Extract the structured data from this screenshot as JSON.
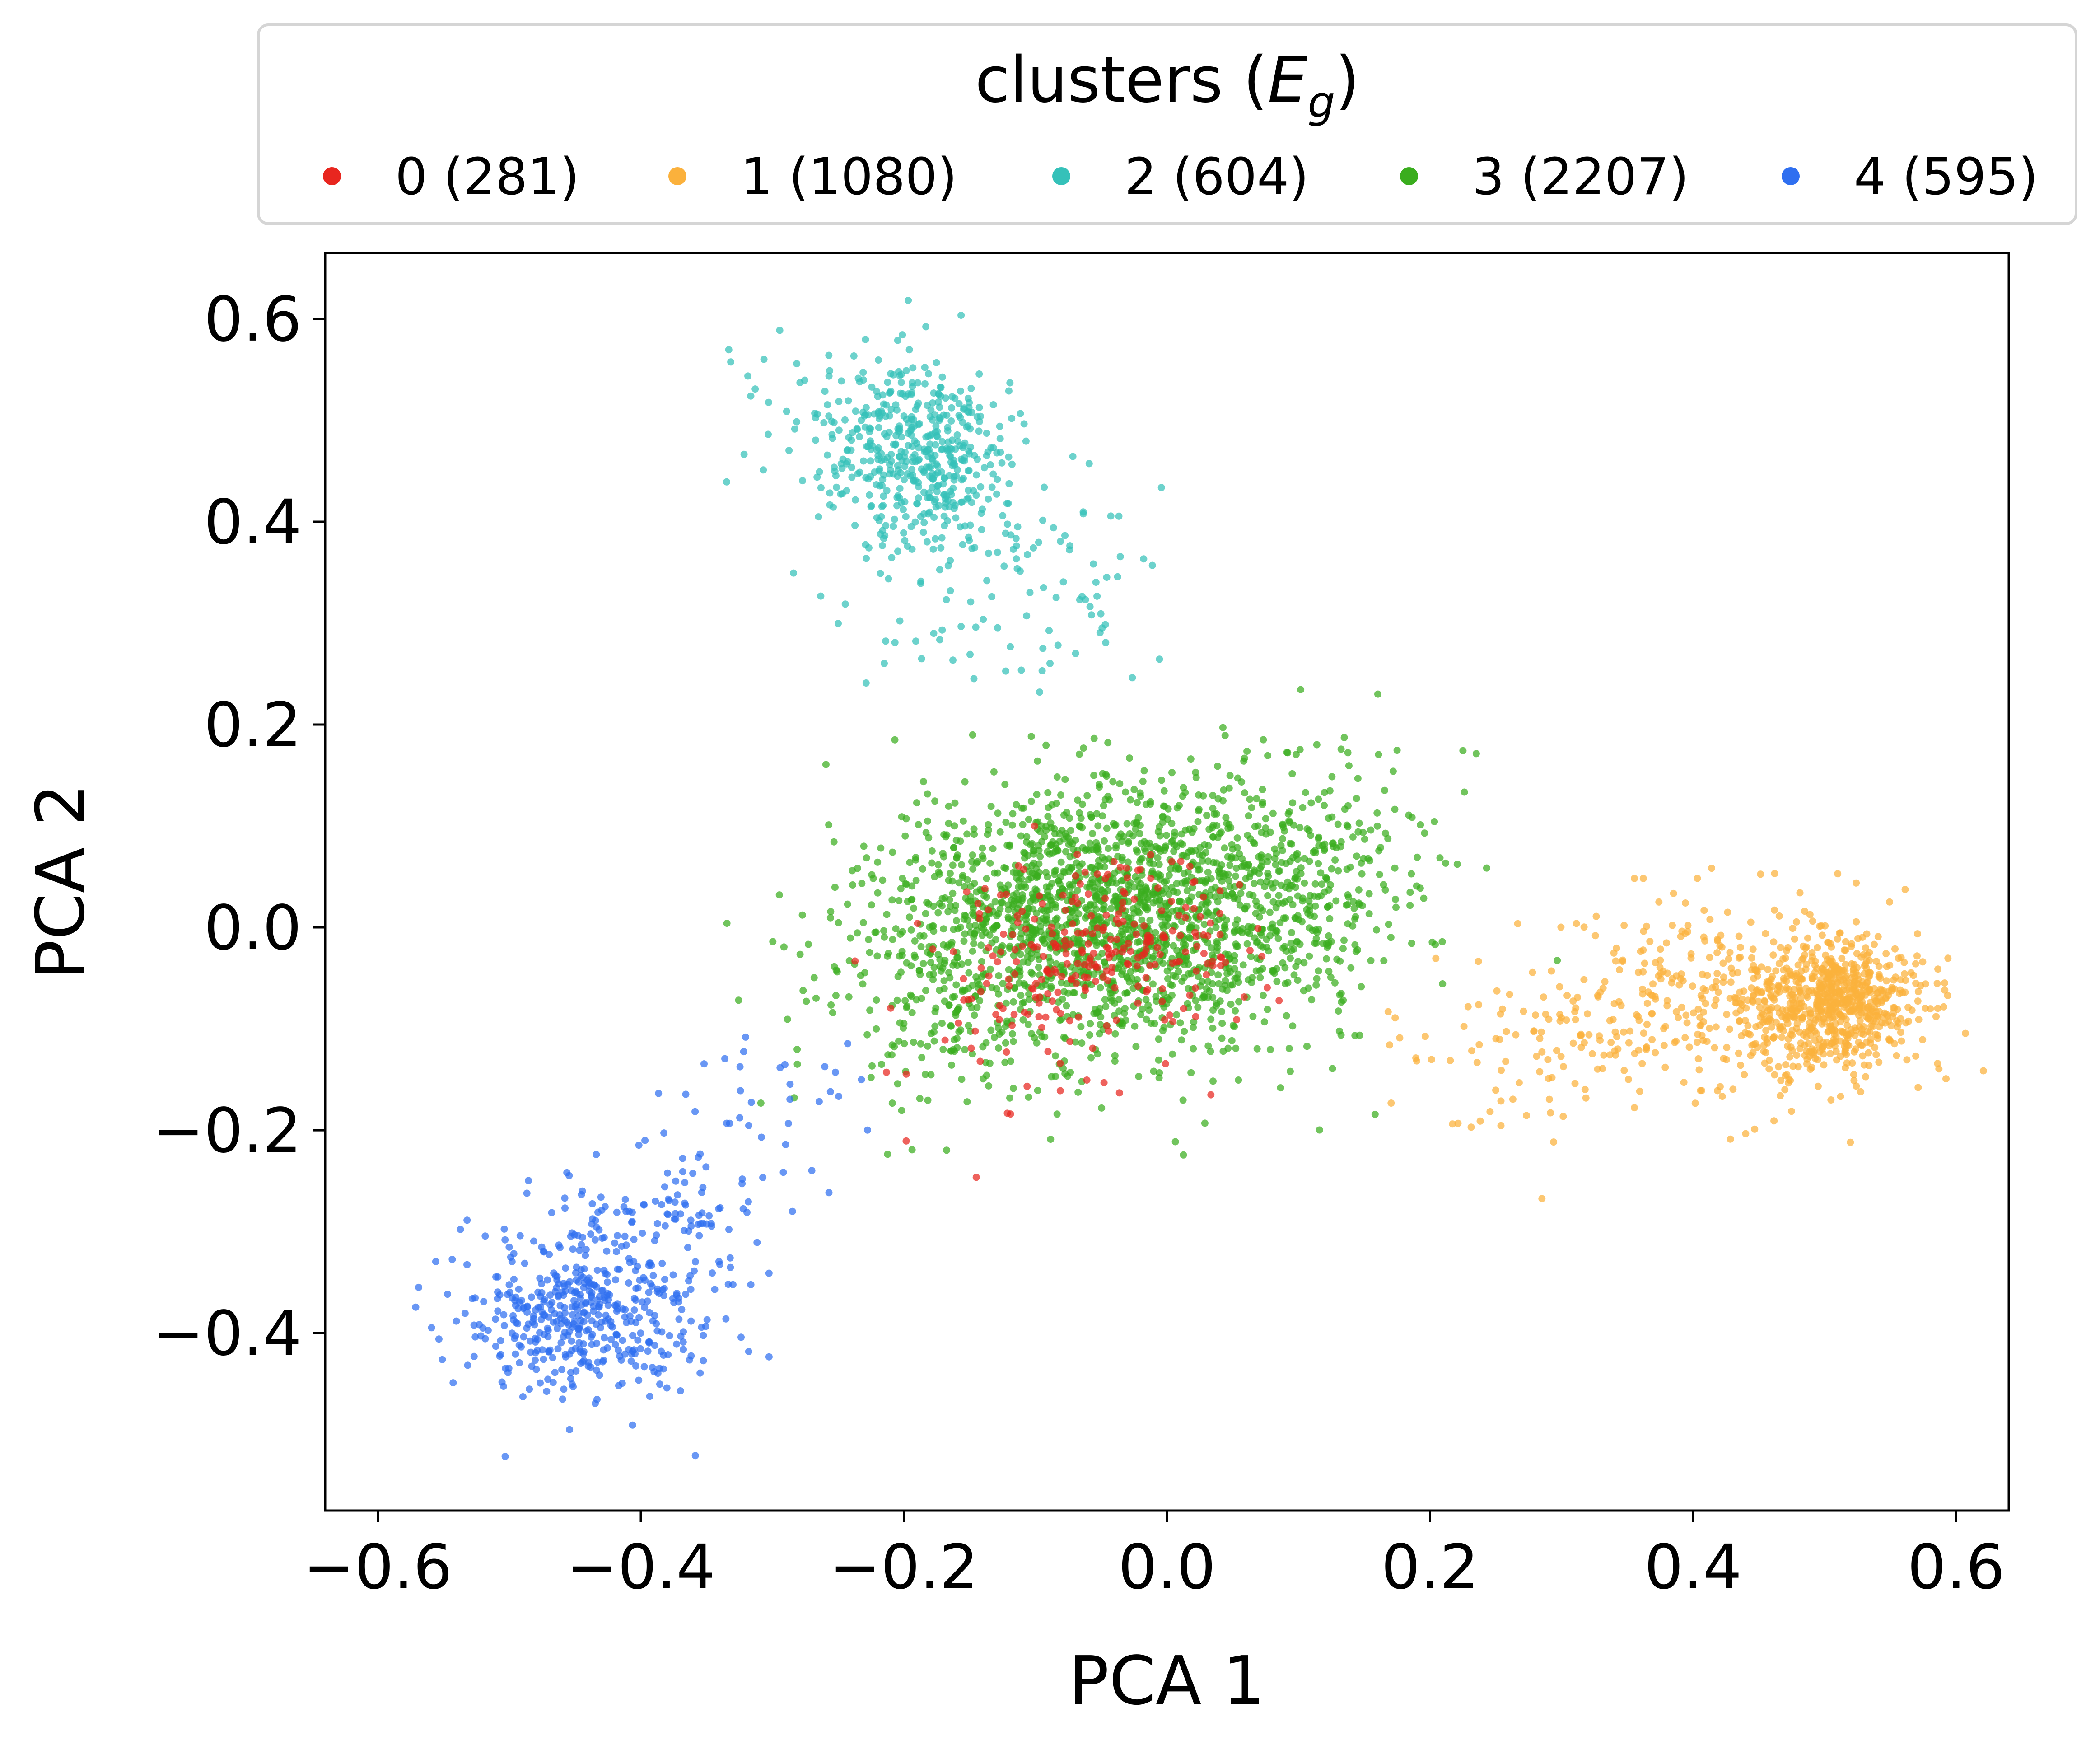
{
  "chart_data": {
    "type": "scatter",
    "xlabel": "PCA 1",
    "ylabel": "PCA 2",
    "xlim": [
      -0.64,
      0.64
    ],
    "ylim": [
      -0.575,
      0.665
    ],
    "xticks": [
      -0.6,
      -0.4,
      -0.2,
      0.0,
      0.2,
      0.4,
      0.6
    ],
    "xtick_labels": [
      "−0.6",
      "−0.4",
      "−0.2",
      "0.0",
      "0.2",
      "0.4",
      "0.6"
    ],
    "yticks": [
      -0.4,
      -0.2,
      0.0,
      0.2,
      0.4,
      0.6
    ],
    "ytick_labels": [
      "−0.4",
      "−0.2",
      "0.0",
      "0.2",
      "0.4",
      "0.6"
    ],
    "grid": false,
    "legend": {
      "title_text": "clusters (",
      "title_var": "E",
      "title_sub": "g",
      "title_close": ")",
      "placement": "top-center, outside plot, single row"
    },
    "series": [
      {
        "name": "0 (281)",
        "color": "#e8261f",
        "count": 281,
        "clusters": [
          {
            "cx": -0.04,
            "cy": -0.02,
            "sx": 0.055,
            "sy": 0.05,
            "n": 230
          },
          {
            "cx": -0.12,
            "cy": -0.08,
            "sx": 0.05,
            "sy": 0.06,
            "n": 51
          }
        ]
      },
      {
        "name": "1 (1080)",
        "color": "#fbb13c",
        "count": 1080,
        "clusters": [
          {
            "cx": 0.51,
            "cy": -0.075,
            "sx": 0.03,
            "sy": 0.03,
            "n": 650
          },
          {
            "cx": 0.43,
            "cy": -0.07,
            "sx": 0.07,
            "sy": 0.05,
            "n": 330
          },
          {
            "cx": 0.3,
            "cy": -0.11,
            "sx": 0.06,
            "sy": 0.05,
            "n": 100
          }
        ]
      },
      {
        "name": "2 (604)",
        "color": "#35c1b9",
        "count": 604,
        "clusters": [
          {
            "cx": -0.19,
            "cy": 0.47,
            "sx": 0.035,
            "sy": 0.045,
            "n": 430
          },
          {
            "cx": -0.14,
            "cy": 0.36,
            "sx": 0.06,
            "sy": 0.06,
            "n": 130
          },
          {
            "cx": -0.27,
            "cy": 0.52,
            "sx": 0.04,
            "sy": 0.04,
            "n": 44
          }
        ]
      },
      {
        "name": "3 (2207)",
        "color": "#3aad1e",
        "count": 2207,
        "clusters": [
          {
            "cx": -0.04,
            "cy": 0.01,
            "sx": 0.085,
            "sy": 0.065,
            "n": 1700
          },
          {
            "cx": 0.09,
            "cy": 0.06,
            "sx": 0.06,
            "sy": 0.06,
            "n": 300
          },
          {
            "cx": -0.16,
            "cy": -0.06,
            "sx": 0.05,
            "sy": 0.07,
            "n": 207
          }
        ]
      },
      {
        "name": "4 (595)",
        "color": "#2f6ff0",
        "count": 595,
        "clusters": [
          {
            "cx": -0.45,
            "cy": -0.38,
            "sx": 0.045,
            "sy": 0.04,
            "n": 450
          },
          {
            "cx": -0.38,
            "cy": -0.3,
            "sx": 0.04,
            "sy": 0.04,
            "n": 110
          },
          {
            "cx": -0.3,
            "cy": -0.18,
            "sx": 0.05,
            "sy": 0.05,
            "n": 35
          }
        ]
      }
    ]
  }
}
